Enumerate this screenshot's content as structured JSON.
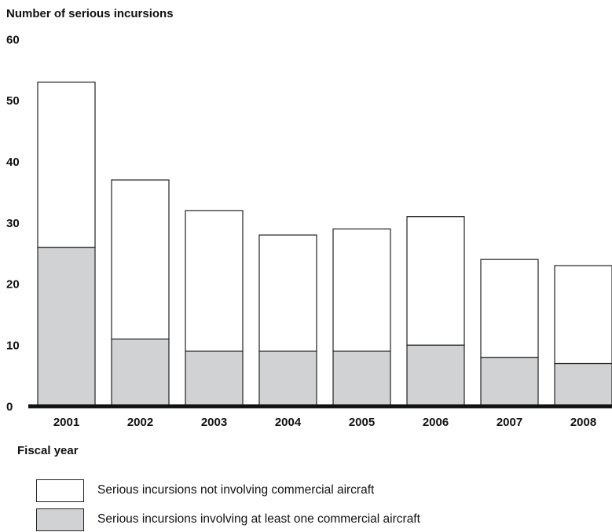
{
  "chart_data": {
    "type": "bar",
    "stacked": true,
    "ylabel": "Number of serious incursions",
    "xlabel": "Fiscal year",
    "ylim": [
      0,
      60
    ],
    "yticks": [
      0,
      10,
      20,
      30,
      40,
      50,
      60
    ],
    "categories": [
      "2001",
      "2002",
      "2003",
      "2004",
      "2005",
      "2006",
      "2007",
      "2008"
    ],
    "series": [
      {
        "name": "Serious incursions involving at least one commercial aircraft",
        "values": [
          26,
          11,
          9,
          9,
          9,
          10,
          8,
          7
        ],
        "color": "#d1d2d4"
      },
      {
        "name": "Serious incursions not involving commercial aircraft",
        "values": [
          27,
          26,
          23,
          19,
          20,
          21,
          16,
          16
        ],
        "color": "#ffffff"
      }
    ],
    "grid": false,
    "legend_position": "bottom"
  },
  "legend": {
    "items": [
      {
        "label": "Serious incursions not involving commercial aircraft",
        "color": "#ffffff"
      },
      {
        "label": "Serious incursions involving at least one commercial aircraft",
        "color": "#d1d2d4"
      }
    ]
  }
}
